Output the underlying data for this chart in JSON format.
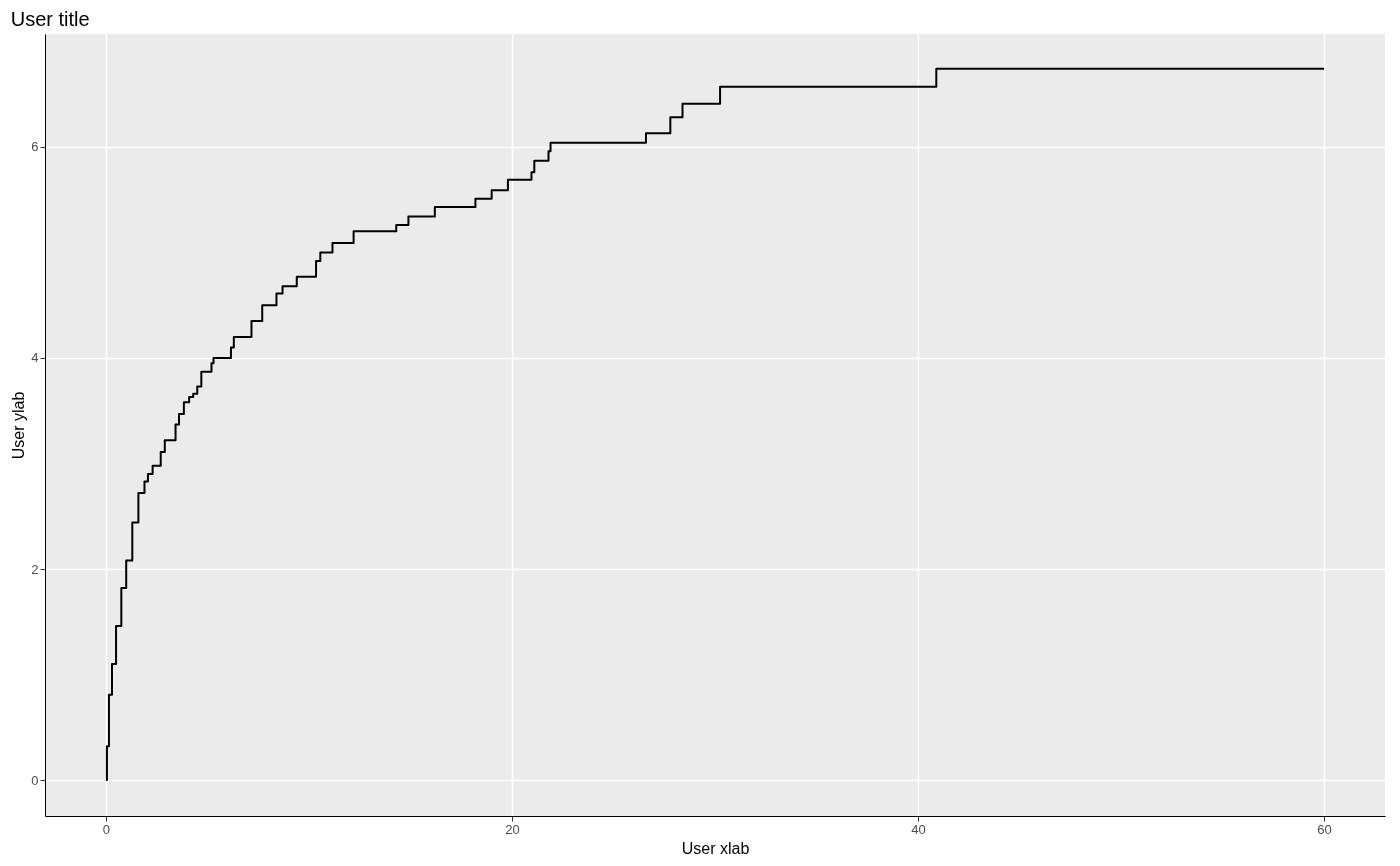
{
  "chart_data": {
    "type": "step",
    "title": "User title",
    "xlabel": "User xlab",
    "ylabel": "User ylab",
    "x": [
      0,
      0.05,
      0.15,
      0.3,
      0.5,
      0.76,
      1.0,
      1.3,
      1.6,
      1.9,
      2.07,
      2.3,
      2.7,
      2.9,
      3.43,
      3.6,
      3.84,
      4.1,
      4.3,
      4.5,
      4.7,
      5.2,
      5.3,
      6.16,
      6.3,
      7.17,
      7.7,
      8.4,
      8.7,
      9.4,
      10.35,
      10.56,
      11.16,
      12.2,
      14.3,
      14.9,
      16.2,
      18.2,
      19.0,
      19.8,
      20.96,
      21.1,
      21.8,
      21.9,
      26.6,
      27.8,
      28.4,
      30.25,
      40.9,
      60
    ],
    "series": [
      {
        "color": "#000000",
        "values": [
          0,
          0.32,
          0.81,
          1.1,
          1.46,
          1.82,
          2.08,
          2.44,
          2.72,
          2.83,
          2.9,
          2.98,
          3.11,
          3.22,
          3.37,
          3.47,
          3.58,
          3.63,
          3.66,
          3.73,
          3.87,
          3.95,
          4.0,
          4.1,
          4.2,
          4.35,
          4.5,
          4.61,
          4.68,
          4.77,
          4.92,
          5.0,
          5.09,
          5.2,
          5.26,
          5.34,
          5.43,
          5.51,
          5.59,
          5.69,
          5.76,
          5.87,
          5.96,
          6.04,
          6.13,
          6.28,
          6.41,
          6.57,
          6.74,
          6.74
        ]
      }
    ],
    "xlim": [
      -3,
      63
    ],
    "ylim": [
      -0.34,
      7.07
    ],
    "xticks": [
      0,
      20,
      40,
      60
    ],
    "yticks": [
      0,
      2,
      4,
      6
    ],
    "grid": true
  }
}
